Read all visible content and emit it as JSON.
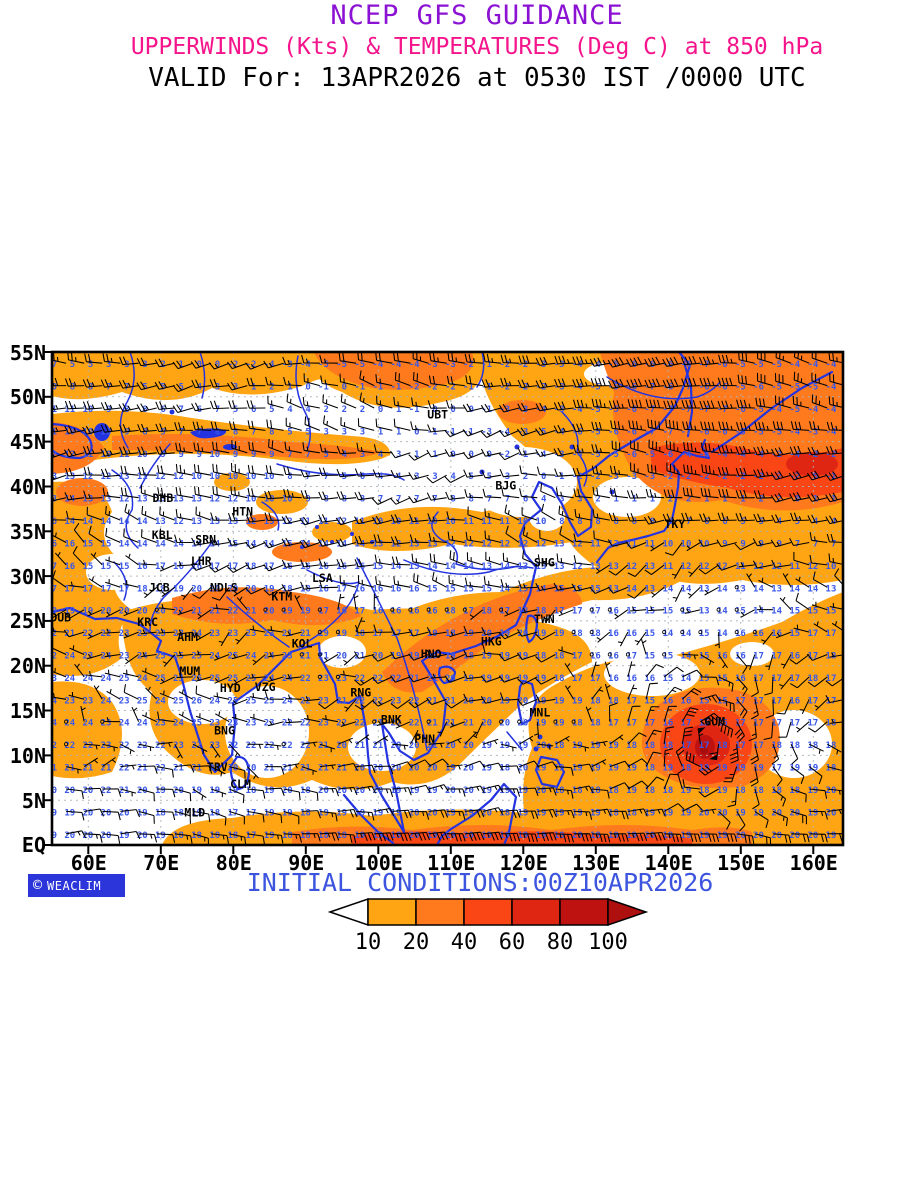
{
  "header": {
    "line1": "NCEP GFS GUIDANCE",
    "line2": "UPPERWINDS (Kts) & TEMPERATURES (Deg C) at 850 hPa",
    "line3": "VALID For: 13APR2026 at 0530 IST /0000 UTC",
    "line1_color": "#8B11D3",
    "line2_color": "#F5148B",
    "line3_color": "#000000"
  },
  "footer": {
    "initial_conditions": "INITIAL CONDITIONS:00Z10APR2026",
    "initial_conditions_color": "#3D55DE",
    "logo": {
      "copyright_icon": "©",
      "text": "WEACLIM",
      "bg": "#2B35D9",
      "fg": "#FFFFFF"
    }
  },
  "colorbar": {
    "tick_labels": [
      "10",
      "20",
      "40",
      "60",
      "80",
      "100"
    ],
    "segment_colors": [
      "#FFA514",
      "#FF7A1C",
      "#FA4614",
      "#DE2612",
      "#BE1211"
    ],
    "left_arrow_color": "#FFFFFF",
    "right_arrow_color": "#AE0F0F",
    "units": "Kts"
  },
  "map": {
    "lat_tick_labels": [
      "55N",
      "50N",
      "45N",
      "40N",
      "35N",
      "30N",
      "25N",
      "20N",
      "15N",
      "10N",
      "5N",
      "EQ"
    ],
    "lon_tick_labels": [
      "60E",
      "70E",
      "80E",
      "90E",
      "100E",
      "110E",
      "120E",
      "130E",
      "140E",
      "150E",
      "160E"
    ],
    "lon_range": [
      55,
      164.2
    ],
    "lat_range": [
      0,
      55
    ],
    "temp_color": "#3A57E8",
    "coast_color": "#2433E0",
    "barb_color": "#000000",
    "stations": [
      {
        "label": "DHB",
        "lon": 70.3,
        "lat": 38.7
      },
      {
        "label": "HTN",
        "lon": 81.3,
        "lat": 37.2
      },
      {
        "label": "KBL",
        "lon": 70.2,
        "lat": 34.6
      },
      {
        "label": "SRN",
        "lon": 76.2,
        "lat": 34.1
      },
      {
        "label": "LHR",
        "lon": 75.6,
        "lat": 31.7
      },
      {
        "label": "JCB",
        "lon": 69.8,
        "lat": 28.7
      },
      {
        "label": "NDLS",
        "lon": 78.7,
        "lat": 28.7
      },
      {
        "label": "KTM",
        "lon": 86.7,
        "lat": 27.7
      },
      {
        "label": "LSA",
        "lon": 92.3,
        "lat": 29.8
      },
      {
        "label": "DUB",
        "lon": 56.2,
        "lat": 25.4
      },
      {
        "label": "KRC",
        "lon": 68.2,
        "lat": 24.9
      },
      {
        "label": "AHM",
        "lon": 73.7,
        "lat": 23.2
      },
      {
        "label": "KOL",
        "lon": 89.5,
        "lat": 22.5
      },
      {
        "label": "MUM",
        "lon": 74.0,
        "lat": 19.4
      },
      {
        "label": "HYD",
        "lon": 79.6,
        "lat": 17.5
      },
      {
        "label": "VZG",
        "lon": 84.4,
        "lat": 17.6
      },
      {
        "label": "BNG",
        "lon": 78.8,
        "lat": 12.8
      },
      {
        "label": "TRV",
        "lon": 77.8,
        "lat": 8.7
      },
      {
        "label": "CLM",
        "lon": 81.0,
        "lat": 6.8
      },
      {
        "label": "MLD",
        "lon": 74.7,
        "lat": 3.6
      },
      {
        "label": "RNG",
        "lon": 97.6,
        "lat": 17.0
      },
      {
        "label": "BNK",
        "lon": 101.8,
        "lat": 14.0
      },
      {
        "label": "PHN",
        "lon": 106.4,
        "lat": 11.8
      },
      {
        "label": "HNO",
        "lon": 107.3,
        "lat": 21.3
      },
      {
        "label": "HKG",
        "lon": 115.6,
        "lat": 22.7
      },
      {
        "label": "TWN",
        "lon": 122.9,
        "lat": 25.2
      },
      {
        "label": "MNL",
        "lon": 122.3,
        "lat": 14.8
      },
      {
        "label": "SHG",
        "lon": 122.9,
        "lat": 31.5
      },
      {
        "label": "BJG",
        "lon": 117.6,
        "lat": 40.1
      },
      {
        "label": "UBT",
        "lon": 108.2,
        "lat": 48.0
      },
      {
        "label": "TKY",
        "lon": 140.9,
        "lat": 35.8
      },
      {
        "label": "GUM",
        "lon": 146.4,
        "lat": 13.8
      }
    ],
    "temperature_anchors": {
      "lon_values": [
        55,
        65,
        75,
        85,
        95,
        105,
        115,
        125,
        135,
        145,
        155,
        165
      ],
      "lat_values": [
        55,
        50,
        45,
        40,
        35,
        30,
        25,
        20,
        15,
        10,
        5,
        0
      ],
      "rows": [
        [
          6,
          2,
          -2,
          -5,
          -7,
          -5,
          -2,
          -3,
          -5,
          -6,
          -5,
          -3
        ],
        [
          11,
          8,
          6,
          4,
          1,
          0,
          -1,
          -3,
          -6,
          -7,
          -5,
          -4
        ],
        [
          12,
          9,
          8,
          9,
          4,
          1,
          -2,
          -5,
          -7,
          -6,
          -4,
          -3
        ],
        [
          13,
          13,
          12,
          10,
          7,
          4,
          7,
          1,
          -2,
          -1,
          -1,
          0
        ],
        [
          17,
          14,
          13,
          13,
          13,
          12,
          12,
          12,
          11,
          9,
          7,
          4
        ],
        [
          17,
          15,
          18,
          19,
          16,
          15,
          14,
          13,
          13,
          13,
          14,
          12
        ],
        [
          21,
          21,
          23,
          22,
          17,
          16,
          19,
          19,
          16,
          14,
          15,
          16
        ],
        [
          23,
          24,
          26,
          25,
          22,
          21,
          19,
          18,
          16,
          15,
          17,
          18
        ],
        [
          24,
          24,
          25,
          24,
          22,
          23,
          21,
          19,
          17,
          15,
          17,
          17
        ],
        [
          22,
          22,
          21,
          21,
          21,
          20,
          19,
          19,
          19,
          18,
          18,
          18
        ],
        [
          19,
          21,
          18,
          18,
          19,
          20,
          19,
          19,
          18,
          19,
          19,
          20
        ],
        [
          19,
          19,
          19,
          18,
          18,
          19,
          20,
          19,
          19,
          19,
          20,
          19
        ]
      ]
    },
    "wind_model": {
      "typhoon": {
        "lon": 145.0,
        "lat": 11.5,
        "max_kt": 70
      },
      "regimes": "westerly jet north of 30N, easterly trades near equator, strong easterly band near EQ 95E-150E, storm band NE Pacific"
    }
  }
}
